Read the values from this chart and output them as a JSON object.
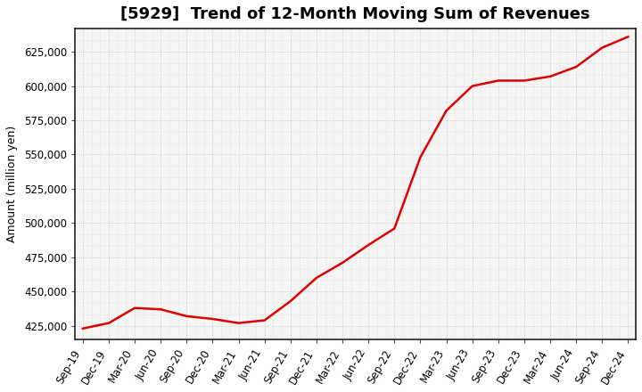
{
  "title": "[5929]  Trend of 12-Month Moving Sum of Revenues",
  "ylabel": "Amount (million yen)",
  "line_color": "#dd0000",
  "background_color": "#ffffff",
  "plot_bg_color": "#f5f5f5",
  "grid_color": "#bbbbbb",
  "x_labels": [
    "Sep-19",
    "Dec-19",
    "Mar-20",
    "Jun-20",
    "Sep-20",
    "Dec-20",
    "Mar-21",
    "Jun-21",
    "Sep-21",
    "Dec-21",
    "Mar-22",
    "Jun-22",
    "Sep-22",
    "Dec-22",
    "Mar-23",
    "Jun-23",
    "Sep-23",
    "Dec-23",
    "Mar-24",
    "Jun-24",
    "Sep-24",
    "Dec-24"
  ],
  "y_values": [
    423000,
    427000,
    438000,
    437000,
    432000,
    430000,
    427000,
    429000,
    443000,
    460000,
    471000,
    484000,
    496000,
    548000,
    582000,
    600000,
    604000,
    604000,
    607000,
    614000,
    628000,
    636000
  ],
  "ylim": [
    415000,
    642000
  ],
  "yticks": [
    425000,
    450000,
    475000,
    500000,
    525000,
    550000,
    575000,
    600000,
    625000
  ],
  "title_fontsize": 13,
  "axis_fontsize": 9,
  "tick_fontsize": 8.5
}
